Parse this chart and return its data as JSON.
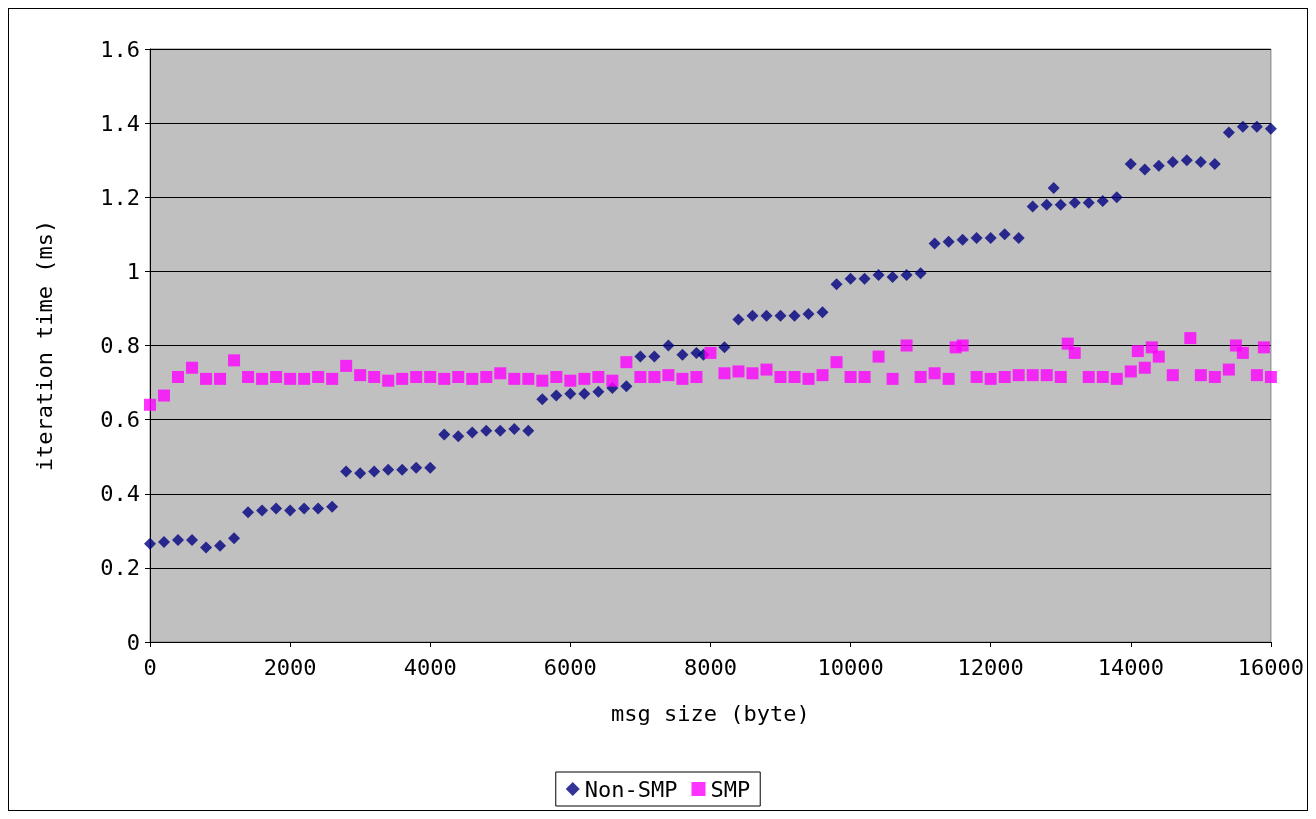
{
  "chart_data": {
    "type": "scatter",
    "xlabel": "msg size (byte)",
    "ylabel": "iteration time (ms)",
    "xlim": [
      0,
      16000
    ],
    "xticks": [
      0,
      2000,
      4000,
      6000,
      8000,
      10000,
      12000,
      14000,
      16000
    ],
    "ylim": [
      0,
      1.6
    ],
    "yticks": [
      0,
      0.2,
      0.4,
      0.6,
      0.8,
      1,
      1.2,
      1.4,
      1.6
    ],
    "grid": "y",
    "legend": "bottom",
    "series": [
      {
        "name": "Non-SMP",
        "color": "#000080",
        "marker": "diamond",
        "x": [
          0,
          200,
          400,
          600,
          800,
          1000,
          1200,
          1400,
          1600,
          1800,
          2000,
          2200,
          2400,
          2600,
          2800,
          3000,
          3200,
          3400,
          3600,
          3800,
          4000,
          4200,
          4400,
          4600,
          4800,
          5000,
          5200,
          5400,
          5600,
          5800,
          6000,
          6200,
          6400,
          6600,
          6800,
          7000,
          7200,
          7400,
          7600,
          7800,
          7900,
          8200,
          8400,
          8600,
          8800,
          9000,
          9200,
          9400,
          9600,
          9800,
          10000,
          10200,
          10400,
          10600,
          10800,
          11000,
          11200,
          11400,
          11600,
          11800,
          12000,
          12200,
          12400,
          12600,
          12800,
          12900,
          13000,
          13200,
          13400,
          13600,
          13800,
          14000,
          14200,
          14400,
          14600,
          14800,
          15000,
          15200,
          15400,
          15600,
          15800,
          16000
        ],
        "values": [
          0.265,
          0.27,
          0.275,
          0.275,
          0.255,
          0.26,
          0.28,
          0.35,
          0.355,
          0.36,
          0.355,
          0.36,
          0.36,
          0.365,
          0.46,
          0.455,
          0.46,
          0.465,
          0.465,
          0.47,
          0.47,
          0.56,
          0.555,
          0.565,
          0.57,
          0.57,
          0.575,
          0.57,
          0.655,
          0.665,
          0.67,
          0.67,
          0.675,
          0.685,
          0.69,
          0.77,
          0.77,
          0.8,
          0.775,
          0.78,
          0.775,
          0.795,
          0.87,
          0.88,
          0.88,
          0.88,
          0.88,
          0.885,
          0.89,
          0.965,
          0.98,
          0.98,
          0.99,
          0.985,
          0.99,
          0.995,
          1.075,
          1.08,
          1.085,
          1.09,
          1.09,
          1.1,
          1.09,
          1.175,
          1.18,
          1.225,
          1.18,
          1.185,
          1.185,
          1.19,
          1.2,
          1.29,
          1.275,
          1.285,
          1.295,
          1.3,
          1.295,
          1.29,
          1.375,
          1.39,
          1.39,
          1.385
        ]
      },
      {
        "name": "SMP",
        "color": "#ff00ff",
        "marker": "square",
        "x": [
          0,
          200,
          400,
          600,
          800,
          1000,
          1200,
          1400,
          1600,
          1800,
          2000,
          2200,
          2400,
          2600,
          2800,
          3000,
          3200,
          3400,
          3600,
          3800,
          4000,
          4200,
          4400,
          4600,
          4800,
          5000,
          5200,
          5400,
          5600,
          5800,
          6000,
          6200,
          6400,
          6600,
          6800,
          7000,
          7200,
          7400,
          7600,
          7800,
          8000,
          8200,
          8400,
          8600,
          8800,
          9000,
          9200,
          9400,
          9600,
          9800,
          10000,
          10200,
          10400,
          10600,
          10800,
          11000,
          11200,
          11400,
          11500,
          11600,
          11800,
          12000,
          12200,
          12400,
          12600,
          12800,
          13000,
          13100,
          13200,
          13400,
          13600,
          13800,
          14000,
          14100,
          14200,
          14300,
          14400,
          14600,
          14850,
          15000,
          15200,
          15400,
          15500,
          15600,
          15800,
          15900,
          16000
        ],
        "values": [
          0.64,
          0.665,
          0.715,
          0.74,
          0.71,
          0.71,
          0.76,
          0.715,
          0.71,
          0.715,
          0.71,
          0.71,
          0.715,
          0.71,
          0.745,
          0.72,
          0.715,
          0.705,
          0.71,
          0.715,
          0.715,
          0.71,
          0.715,
          0.71,
          0.715,
          0.725,
          0.71,
          0.71,
          0.705,
          0.715,
          0.705,
          0.71,
          0.715,
          0.705,
          0.755,
          0.715,
          0.715,
          0.72,
          0.71,
          0.715,
          0.78,
          0.725,
          0.73,
          0.725,
          0.735,
          0.715,
          0.715,
          0.71,
          0.72,
          0.755,
          0.715,
          0.715,
          0.77,
          0.71,
          0.8,
          0.715,
          0.725,
          0.71,
          0.795,
          0.8,
          0.715,
          0.71,
          0.715,
          0.72,
          0.72,
          0.72,
          0.715,
          0.805,
          0.78,
          0.715,
          0.715,
          0.71,
          0.73,
          0.785,
          0.74,
          0.795,
          0.77,
          0.72,
          0.82,
          0.72,
          0.715,
          0.735,
          0.8,
          0.78,
          0.72,
          0.795,
          0.715
        ]
      }
    ]
  }
}
